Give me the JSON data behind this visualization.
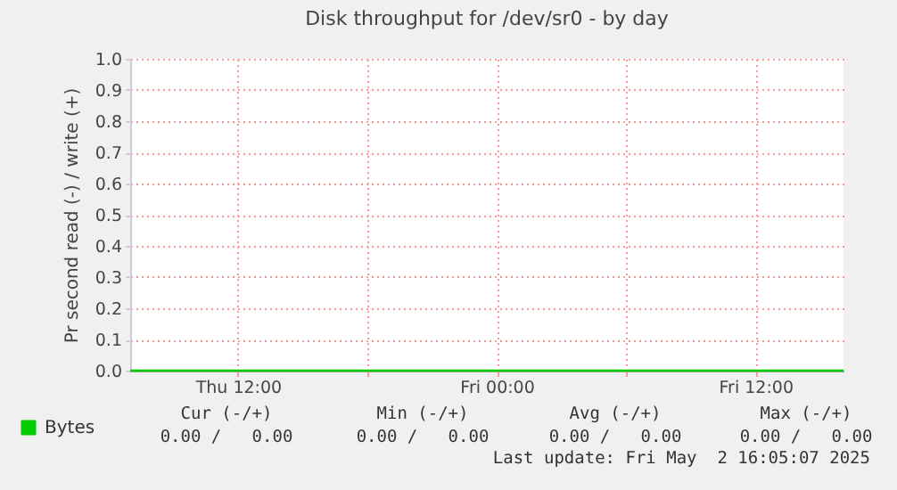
{
  "chart_data": {
    "type": "line",
    "title": "Disk throughput for /dev/sr0 - by day",
    "ylabel": "Pr second read (-) / write (+)",
    "x": [
      "2025-05-01T07:00",
      "2025-05-02T16:05"
    ],
    "series": [
      {
        "name": "Bytes",
        "color": "#00cc00",
        "values": [
          0,
          0
        ]
      }
    ],
    "xlim": [
      "2025-05-01T07:00",
      "2025-05-02T16:05"
    ],
    "xticks": [
      {
        "value": "2025-05-01T12:00",
        "label": "Thu 12:00"
      },
      {
        "value": "2025-05-01T18:00",
        "label": null
      },
      {
        "value": "2025-05-02T00:00",
        "label": "Fri 00:00"
      },
      {
        "value": "2025-05-02T06:00",
        "label": null
      },
      {
        "value": "2025-05-02T12:00",
        "label": "Fri 12:00"
      }
    ],
    "ylim": [
      0,
      1
    ],
    "yticks": [
      {
        "value": 0,
        "label": "0.0"
      },
      0.1,
      0.2,
      0.3,
      0.4,
      0.5,
      0.6,
      0.7,
      0.8,
      0.9,
      {
        "value": 1,
        "label": "1.0"
      }
    ],
    "grid": true,
    "legend": "bottom left",
    "annotations": [
      "Cur (-/+)",
      "Min (-/+)",
      "Avg (-/+)",
      "Max (-/+)",
      "0.00 /   0.00",
      "0.00 /   0.00",
      "0.00 /   0.00",
      "0.00 /   0.00",
      "Last update: Fri May  2 16:05:07 2025"
    ]
  }
}
